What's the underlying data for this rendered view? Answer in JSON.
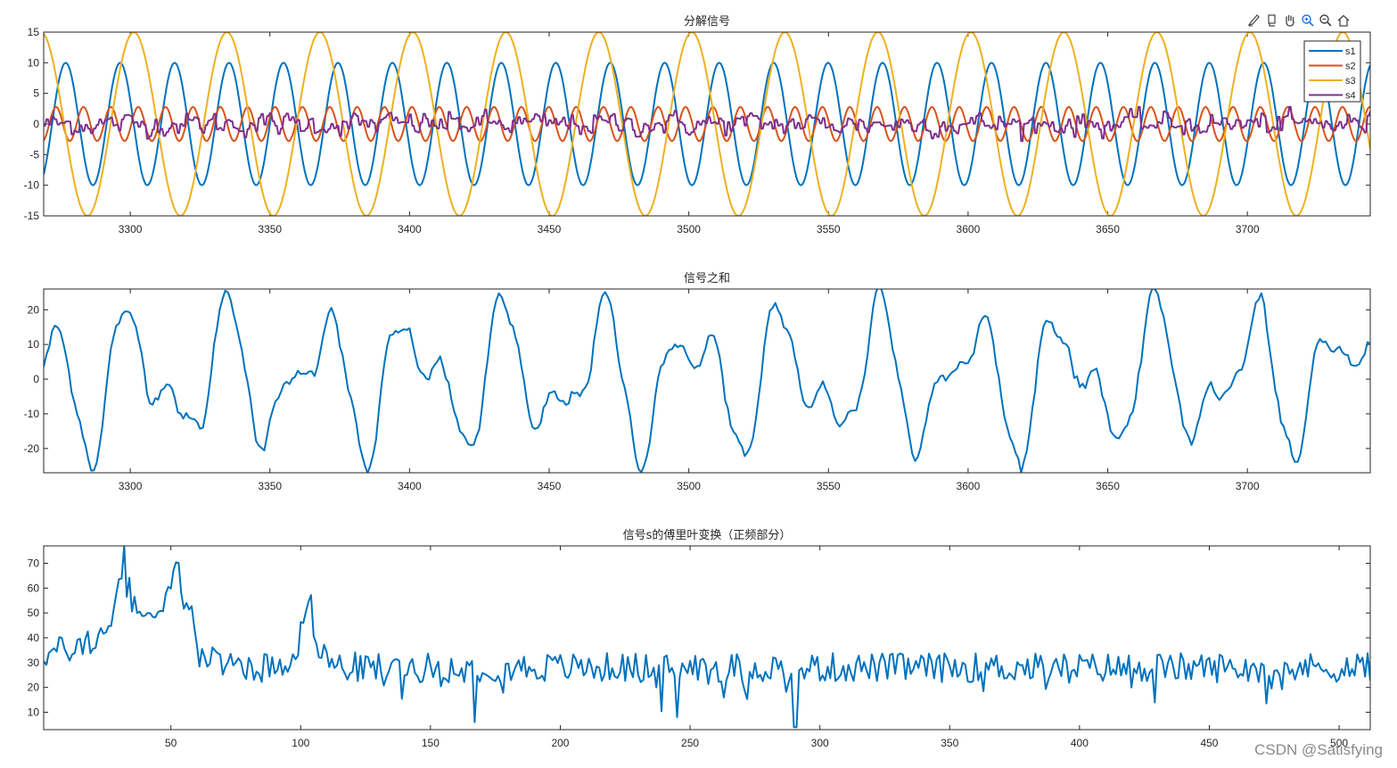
{
  "toolbar": {
    "tools": [
      {
        "name": "brush-icon",
        "label": "Brush"
      },
      {
        "name": "data-tips-icon",
        "label": "Data Tips"
      },
      {
        "name": "pan-hand-icon",
        "label": "Pan"
      },
      {
        "name": "zoom-in-icon",
        "label": "Zoom In"
      },
      {
        "name": "zoom-out-icon",
        "label": "Zoom Out"
      },
      {
        "name": "home-icon",
        "label": "Restore View"
      }
    ]
  },
  "watermark": "CSDN @Satisfying",
  "colors": {
    "s1": "#0072BD",
    "s2": "#D95319",
    "s3": "#EDB120",
    "s4": "#7E2F8E",
    "axis": "#262626"
  },
  "chart_data": [
    {
      "type": "line",
      "title": "分解信号",
      "xlim": [
        3269,
        3744
      ],
      "ylim": [
        -15,
        15
      ],
      "xticks": [
        3300,
        3350,
        3400,
        3450,
        3500,
        3550,
        3600,
        3650,
        3700
      ],
      "yticks": [
        -15,
        -10,
        -5,
        0,
        5,
        10,
        15
      ],
      "legend": {
        "position": "top-right",
        "entries": [
          "s1",
          "s2",
          "s3",
          "s4"
        ]
      },
      "series": [
        {
          "name": "s1",
          "color": "#0072BD",
          "amplitude": 10,
          "period_samples": 19.5,
          "shape": "sinusoid"
        },
        {
          "name": "s2",
          "color": "#D95319",
          "amplitude": 2.8,
          "period_samples": 9.8,
          "shape": "sinusoid"
        },
        {
          "name": "s3",
          "color": "#EDB120",
          "amplitude": 15,
          "period_samples": 33.3,
          "shape": "sinusoid"
        },
        {
          "name": "s4",
          "color": "#7E2F8E",
          "amplitude": 1.5,
          "shape": "noise"
        }
      ]
    },
    {
      "type": "line",
      "title": "信号之和",
      "xlim": [
        3269,
        3744
      ],
      "ylim": [
        -27,
        26
      ],
      "xticks": [
        3300,
        3350,
        3400,
        3450,
        3500,
        3550,
        3600,
        3650,
        3700
      ],
      "yticks": [
        -20,
        -10,
        0,
        10,
        20
      ],
      "series": [
        {
          "color": "#0072BD",
          "shape": "sum of s1..s4"
        }
      ]
    },
    {
      "type": "line",
      "title": "信号s的傅里叶变换（正频部分）",
      "xlim": [
        1,
        512
      ],
      "ylim": [
        3,
        77
      ],
      "xticks": [
        50,
        100,
        150,
        200,
        250,
        300,
        350,
        400,
        450,
        500
      ],
      "yticks": [
        10,
        20,
        30,
        40,
        50,
        60,
        70
      ],
      "peaks": [
        {
          "x": 32,
          "y": 77
        },
        {
          "x": 52,
          "y": 73
        },
        {
          "x": 103,
          "y": 61
        }
      ],
      "baseline": 28,
      "series": [
        {
          "color": "#0072BD",
          "shape": "spectrum"
        }
      ]
    }
  ]
}
